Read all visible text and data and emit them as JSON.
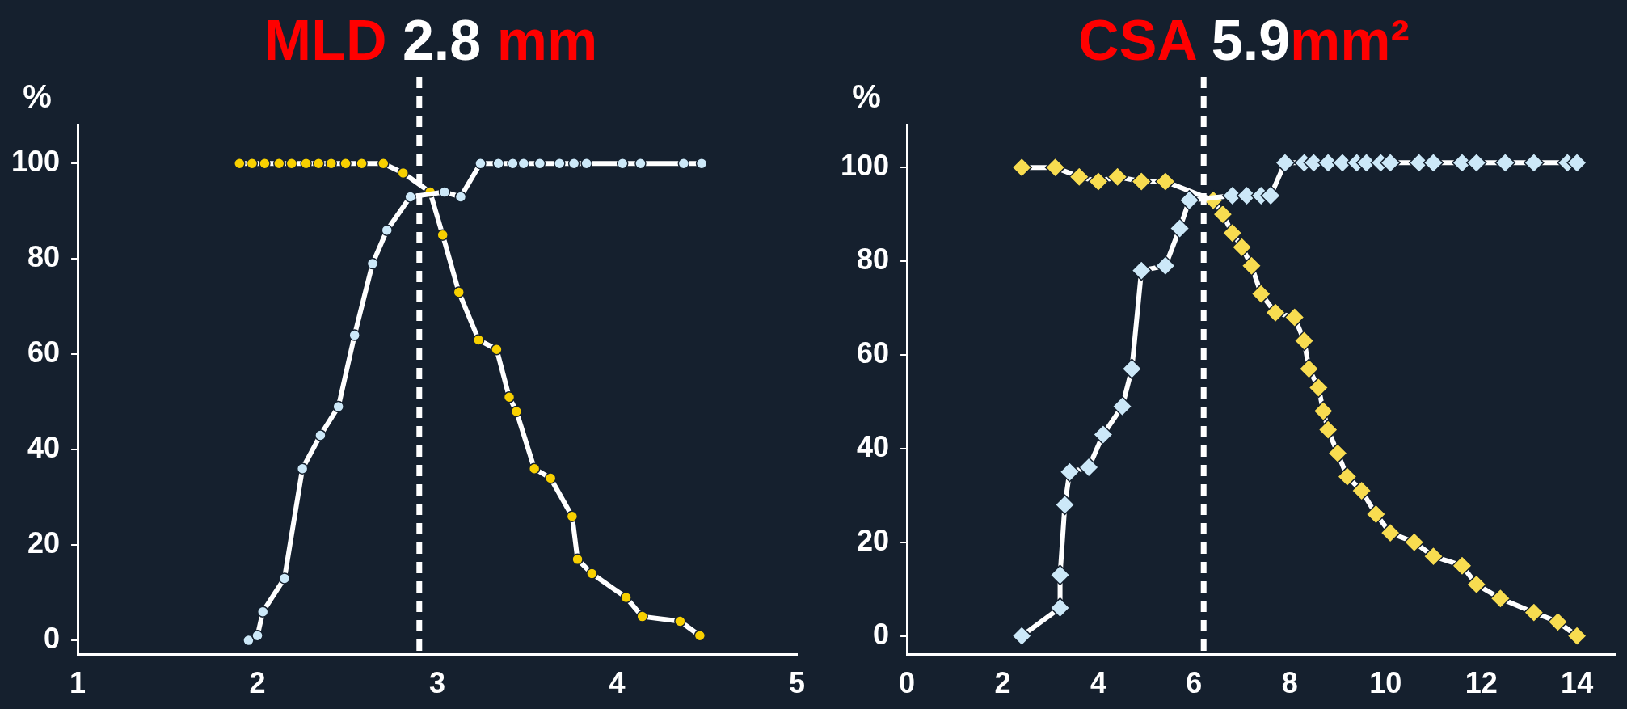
{
  "chart_data": [
    {
      "type": "line",
      "title": "MLD 2.8 mm",
      "ylabel": "%",
      "marker": "circle",
      "legend": false,
      "xlim": [
        1,
        5
      ],
      "xticks": [
        1,
        2,
        3,
        4,
        5
      ],
      "ylim": [
        -3,
        108
      ],
      "yticks": [
        0,
        20,
        40,
        60,
        80,
        100
      ],
      "ref_lines": [
        {
          "axis": "x",
          "value": 2.9,
          "line_style": "dashed",
          "color": "#ffffff"
        }
      ],
      "series": [
        {
          "color": "#cce8f8",
          "x": [
            1.95,
            2.0,
            2.03,
            2.15,
            2.25,
            2.35,
            2.45,
            2.54,
            2.64,
            2.72,
            2.85,
            3.04,
            3.13,
            3.24,
            3.34,
            3.42,
            3.48,
            3.57,
            3.68,
            3.76,
            3.83,
            4.03,
            4.13,
            4.37,
            4.47
          ],
          "values": [
            0,
            1,
            6,
            13,
            36,
            43,
            49,
            64,
            79,
            86,
            93,
            94,
            93,
            100,
            100,
            100,
            100,
            100,
            100,
            100,
            100,
            100,
            100,
            100,
            100
          ]
        },
        {
          "color": "#f8d000",
          "x": [
            1.9,
            1.97,
            2.04,
            2.12,
            2.19,
            2.27,
            2.34,
            2.41,
            2.49,
            2.58,
            2.7,
            2.81,
            2.96,
            3.03,
            3.12,
            3.23,
            3.33,
            3.4,
            3.44,
            3.54,
            3.63,
            3.75,
            3.78,
            3.86,
            4.05,
            4.14,
            4.35,
            4.46
          ],
          "values": [
            100,
            100,
            100,
            100,
            100,
            100,
            100,
            100,
            100,
            100,
            100,
            98,
            94,
            85,
            73,
            63,
            61,
            51,
            48,
            36,
            34,
            26,
            17,
            14,
            9,
            5,
            4,
            1
          ]
        }
      ]
    },
    {
      "type": "line",
      "title": "CSA 5.9mm²",
      "ylabel": "%",
      "marker": "diamond",
      "legend": false,
      "xlim": [
        0,
        14.8
      ],
      "xticks": [
        0,
        2,
        4,
        6,
        8,
        10,
        12,
        14
      ],
      "ylim": [
        -4,
        109
      ],
      "yticks": [
        0,
        20,
        40,
        60,
        80,
        100
      ],
      "ref_lines": [
        {
          "axis": "x",
          "value": 6.2,
          "line_style": "dashed",
          "color": "#ffffff"
        }
      ],
      "series": [
        {
          "color": "#cce8f8",
          "x": [
            2.4,
            3.2,
            3.2,
            3.3,
            3.4,
            3.8,
            4.1,
            4.5,
            4.7,
            4.9,
            5.4,
            5.7,
            5.9,
            6.8,
            7.1,
            7.4,
            7.6,
            7.9,
            8.3,
            8.5,
            8.8,
            9.1,
            9.4,
            9.6,
            9.9,
            10.1,
            10.7,
            11.0,
            11.6,
            11.9,
            12.5,
            13.1,
            13.8,
            14.0
          ],
          "values": [
            0,
            6,
            13,
            28,
            35,
            36,
            43,
            49,
            57,
            78,
            79,
            87,
            93,
            94,
            94,
            94,
            94,
            101,
            101,
            101,
            101,
            101,
            101,
            101,
            101,
            101,
            101,
            101,
            101,
            101,
            101,
            101,
            101,
            101
          ]
        },
        {
          "color": "#f8dc50",
          "x": [
            2.4,
            3.1,
            3.6,
            4.0,
            4.4,
            4.9,
            5.4,
            6.4,
            6.6,
            6.8,
            7.0,
            7.2,
            7.4,
            7.7,
            8.1,
            8.3,
            8.4,
            8.6,
            8.7,
            8.8,
            9.0,
            9.2,
            9.5,
            9.8,
            10.1,
            10.6,
            11.0,
            11.6,
            11.9,
            12.4,
            13.1,
            13.6,
            14.0
          ],
          "values": [
            100,
            100,
            98,
            97,
            98,
            97,
            97,
            93,
            90,
            86,
            83,
            79,
            73,
            69,
            68,
            63,
            57,
            53,
            48,
            44,
            39,
            34,
            31,
            26,
            22,
            20,
            17,
            15,
            11,
            8,
            5,
            3,
            0
          ]
        }
      ]
    }
  ]
}
